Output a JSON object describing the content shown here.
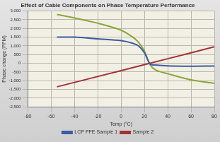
{
  "chart_data": {
    "type": "line",
    "title": "Effect of Cable Components on Phase Temperature Performance",
    "x_label": "Temp (°C)",
    "y_label": "Phase change (PPM)",
    "xlim": [
      -80,
      80
    ],
    "xticks": [
      -80,
      -60,
      -40,
      -20,
      0,
      20,
      40,
      60,
      80
    ],
    "ylim": [
      -2500,
      3000
    ],
    "yticks": [
      -2500,
      -2000,
      -1500,
      -1000,
      -500,
      0,
      500,
      1000,
      1500,
      2000,
      2500,
      3000
    ],
    "grid": true,
    "legend": "bottom",
    "series": [
      {
        "name": "LCP PFE Sample 1",
        "color": "#3b5ba5",
        "x": [
          -55,
          -40,
          -20,
          0,
          10,
          15,
          20,
          25,
          30,
          40,
          60,
          80
        ],
        "values": [
          1500,
          1500,
          1400,
          1300,
          1150,
          1000,
          600,
          -50,
          -100,
          -150,
          -170,
          -160
        ]
      },
      {
        "name": "Sample 2",
        "color": "#a33232",
        "x": [
          -55,
          0,
          40,
          80
        ],
        "values": [
          -1350,
          -420,
          260,
          950
        ]
      },
      {
        "color": "#8aa63a",
        "x": [
          -55,
          -40,
          -20,
          0,
          10,
          15,
          20,
          25,
          30,
          40,
          60,
          80
        ],
        "values": [
          2800,
          2600,
          2300,
          1900,
          1500,
          1200,
          700,
          -100,
          -400,
          -600,
          -950,
          -1150
        ]
      }
    ]
  }
}
